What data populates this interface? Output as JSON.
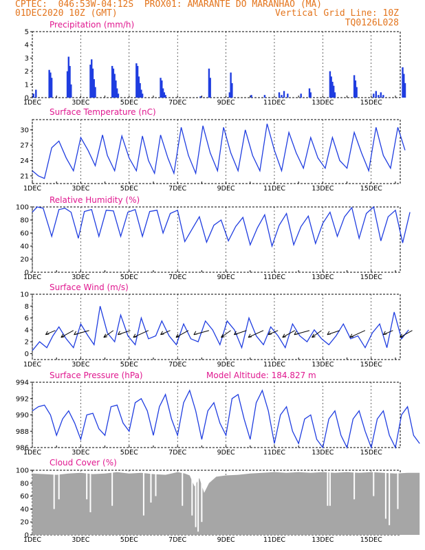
{
  "header": {
    "line1": "CPTEC:  046:53W-04:12S  PROX01: AMARANTE DO MARANHAO (MA)",
    "line2_left": "01DEC2020 10Z (GMT)",
    "line2_right": "Vertical Grid Line: 10Z",
    "line3_right": "TQ0126L028"
  },
  "colors": {
    "header": "#e3741c",
    "title": "#e0178f",
    "series": "#1f3de0",
    "cloud": "#a6a6a6",
    "wind_arrow": "#000000"
  },
  "x_ticks": [
    "1DEC",
    "3DEC",
    "5DEC",
    "7DEC",
    "9DEC",
    "11DEC",
    "13DEC",
    "15DEC"
  ],
  "panels": {
    "precip": {
      "title": "Precipitation (mm/h)"
    },
    "temp": {
      "title": "Surface Temperature (nC)"
    },
    "rh": {
      "title": "Relative Humidity (%)"
    },
    "wind": {
      "title": "Surface Wind (m/s)"
    },
    "pres": {
      "title": "Surface Pressure (hPa)",
      "extra": "Model Altitude: 184.827 m"
    },
    "cloud": {
      "title": "Cloud Cover (%)"
    }
  },
  "chart_data": [
    {
      "id": "precip",
      "type": "bar",
      "title": "Precipitation (mm/h)",
      "ylim": [
        0,
        5
      ],
      "yticks": [
        0,
        1,
        2,
        3,
        4,
        5
      ],
      "x_unit": "days since 1DEC2020 10Z",
      "x": [
        0.05,
        0.15,
        0.7,
        0.75,
        0.8,
        1.45,
        1.5,
        1.55,
        1.6,
        2.4,
        2.45,
        2.5,
        2.55,
        2.6,
        3.3,
        3.35,
        3.4,
        3.45,
        3.5,
        3.55,
        4.3,
        4.35,
        4.4,
        4.45,
        4.5,
        4.55,
        5.3,
        5.35,
        5.4,
        5.45,
        5.5,
        6.95,
        7.3,
        7.35,
        8.15,
        8.2,
        8.25,
        9.05,
        9.6,
        10.2,
        10.3,
        10.4,
        10.55,
        11.1,
        11.45,
        11.5,
        12.3,
        12.35,
        12.4,
        12.45,
        12.5,
        13.3,
        13.35,
        13.4,
        14.1,
        14.2,
        14.3,
        14.4,
        14.5,
        15.3,
        15.35,
        15.4
      ],
      "values": [
        0.3,
        0.6,
        2.1,
        1.9,
        1.5,
        2.0,
        3.1,
        2.4,
        1.0,
        2.5,
        2.9,
        2.2,
        1.4,
        0.8,
        2.4,
        2.2,
        1.8,
        1.3,
        0.7,
        0.3,
        2.6,
        2.4,
        1.6,
        1.1,
        0.6,
        0.3,
        1.5,
        1.3,
        0.7,
        0.4,
        0.2,
        0.1,
        2.2,
        1.5,
        0.4,
        1.9,
        1.1,
        0.2,
        0.2,
        0.4,
        0.2,
        0.5,
        0.3,
        0.3,
        0.7,
        0.4,
        2.0,
        1.6,
        1.2,
        0.9,
        0.4,
        1.7,
        1.3,
        0.8,
        0.3,
        0.5,
        0.2,
        0.4,
        0.2,
        2.3,
        1.8,
        1.1
      ]
    },
    {
      "id": "temp",
      "type": "line",
      "title": "Surface Temperature (nC)",
      "ylim": [
        19.5,
        32
      ],
      "yticks": [
        21,
        24,
        27,
        30
      ],
      "x_unit": "days since 1DEC2020 10Z",
      "series": [
        {
          "name": "",
          "x": [
            0,
            0.25,
            0.5,
            0.8,
            1.1,
            1.4,
            1.7,
            2.0,
            2.3,
            2.6,
            2.9,
            3.1,
            3.4,
            3.7,
            4.0,
            4.3,
            4.55,
            4.8,
            5.05,
            5.3,
            5.6,
            5.85,
            6.15,
            6.45,
            6.75,
            7.05,
            7.35,
            7.65,
            7.9,
            8.2,
            8.5,
            8.8,
            9.1,
            9.4,
            9.7,
            10.0,
            10.3,
            10.6,
            10.9,
            11.2,
            11.5,
            11.8,
            12.1,
            12.4,
            12.7,
            13.0,
            13.3,
            13.6,
            13.9,
            14.2,
            14.5,
            14.8,
            15.1,
            15.4
          ],
          "values": [
            22,
            21,
            20.5,
            26.5,
            27.8,
            24.5,
            22,
            28.5,
            26,
            23,
            29,
            25,
            22,
            28.8,
            24.5,
            22,
            28.8,
            24,
            21.5,
            29,
            24.5,
            21.5,
            30.5,
            25,
            21.5,
            30.8,
            25.5,
            22,
            30.5,
            25.5,
            22,
            30,
            25,
            22,
            31.2,
            26,
            22,
            29.5,
            25.5,
            22.5,
            28.5,
            24.5,
            22.5,
            28.5,
            24,
            22.5,
            29.5,
            25.5,
            22,
            30.5,
            25,
            22.5,
            30.5,
            26
          ]
        }
      ]
    },
    {
      "id": "rh",
      "type": "line",
      "title": "Relative Humidity (%)",
      "ylim": [
        0,
        100
      ],
      "yticks": [
        0,
        20,
        40,
        60,
        80,
        100
      ],
      "x_unit": "days since 1DEC2020 10Z",
      "series": [
        {
          "name": "",
          "x": [
            0,
            0.2,
            0.45,
            0.8,
            1.1,
            1.35,
            1.6,
            1.9,
            2.15,
            2.45,
            2.75,
            3.05,
            3.35,
            3.65,
            3.95,
            4.25,
            4.55,
            4.85,
            5.15,
            5.4,
            5.7,
            6.0,
            6.3,
            6.6,
            6.9,
            7.2,
            7.5,
            7.8,
            8.1,
            8.4,
            8.7,
            9.0,
            9.3,
            9.6,
            9.9,
            10.2,
            10.5,
            10.8,
            11.1,
            11.4,
            11.7,
            12.0,
            12.3,
            12.6,
            12.9,
            13.2,
            13.5,
            13.8,
            14.1,
            14.4,
            14.7,
            15.0,
            15.3,
            15.6
          ],
          "values": [
            92,
            100,
            98,
            55,
            96,
            98,
            92,
            52,
            93,
            96,
            55,
            95,
            94,
            55,
            92,
            96,
            55,
            93,
            95,
            60,
            90,
            95,
            47,
            66,
            85,
            46,
            72,
            80,
            48,
            70,
            84,
            42,
            68,
            88,
            40,
            72,
            90,
            42,
            70,
            86,
            44,
            75,
            92,
            55,
            85,
            99,
            52,
            90,
            100,
            48,
            85,
            95,
            45,
            92
          ]
        }
      ]
    },
    {
      "id": "wind",
      "type": "line",
      "title": "Surface Wind (m/s)",
      "ylim": [
        -1,
        10
      ],
      "yticks": [
        0,
        2,
        4,
        6,
        8,
        10
      ],
      "x_unit": "days since 1DEC2020 10Z",
      "series": [
        {
          "name": "",
          "x": [
            0,
            0.3,
            0.6,
            0.85,
            1.1,
            1.4,
            1.7,
            2.0,
            2.3,
            2.55,
            2.8,
            3.1,
            3.4,
            3.65,
            3.95,
            4.25,
            4.5,
            4.8,
            5.1,
            5.35,
            5.65,
            5.95,
            6.25,
            6.55,
            6.85,
            7.15,
            7.45,
            7.75,
            8.05,
            8.35,
            8.65,
            8.95,
            9.25,
            9.55,
            9.85,
            10.15,
            10.45,
            10.75,
            11.05,
            11.35,
            11.65,
            11.95,
            12.25,
            12.55,
            12.85,
            13.15,
            13.45,
            13.75,
            14.05,
            14.35,
            14.65,
            14.95,
            15.25,
            15.55
          ],
          "values": [
            0.5,
            2,
            1,
            3,
            4.5,
            2.5,
            1,
            5,
            3,
            1.5,
            8,
            3.5,
            2,
            6.5,
            3,
            1.5,
            6,
            2.5,
            3,
            5.5,
            3,
            1.5,
            5,
            2.5,
            2,
            5.5,
            4,
            1.5,
            5.5,
            4,
            1,
            6,
            3,
            1.5,
            4.5,
            3,
            1,
            5,
            3,
            2,
            4,
            2.5,
            1.5,
            3,
            5,
            2.5,
            3,
            1,
            3.5,
            5,
            1,
            7,
            2.5,
            4
          ]
        }
      ],
      "barbs_x": [
        0.55,
        1.3,
        1.95,
        2.95,
        3.65,
        4.4,
        5.3,
        6.05,
        6.9,
        7.8,
        8.45,
        9.15,
        9.75,
        10.45,
        11.05,
        11.55,
        12.3,
        13.35,
        14.5,
        15.3
      ]
    },
    {
      "id": "pres",
      "type": "line",
      "title": "Surface Pressure (hPa)",
      "ylim": [
        986,
        994
      ],
      "yticks": [
        986,
        988,
        990,
        992,
        994
      ],
      "x_unit": "days since 1DEC2020 10Z",
      "series": [
        {
          "name": "",
          "x": [
            0,
            0.25,
            0.5,
            0.75,
            1.0,
            1.25,
            1.5,
            1.75,
            2.0,
            2.25,
            2.5,
            2.75,
            3.0,
            3.25,
            3.5,
            3.75,
            4.0,
            4.25,
            4.5,
            4.75,
            5.0,
            5.25,
            5.5,
            5.75,
            6.0,
            6.25,
            6.5,
            6.75,
            7.0,
            7.25,
            7.5,
            7.75,
            8.0,
            8.25,
            8.5,
            8.75,
            9.0,
            9.25,
            9.5,
            9.75,
            10.0,
            10.25,
            10.5,
            10.75,
            11.0,
            11.25,
            11.5,
            11.75,
            12.0,
            12.25,
            12.5,
            12.75,
            13.0,
            13.25,
            13.5,
            13.75,
            14.0,
            14.25,
            14.5,
            14.75,
            15.0,
            15.25,
            15.5,
            15.75,
            16.0
          ],
          "values": [
            990.5,
            991,
            991.2,
            990,
            987.5,
            989.5,
            990.5,
            989,
            987,
            990,
            990.2,
            988.3,
            987.5,
            991,
            991.2,
            989,
            988,
            991.5,
            992,
            990.5,
            987.5,
            991,
            992.5,
            989.5,
            987.5,
            991.5,
            993,
            990.5,
            987,
            990.5,
            991.5,
            989,
            987.5,
            992,
            992.5,
            989.5,
            987,
            991.5,
            993,
            990.5,
            986.5,
            990,
            991,
            988,
            986.5,
            989.5,
            990,
            987,
            986,
            989.5,
            990.5,
            987.5,
            986,
            989.5,
            990.5,
            988,
            986,
            989.5,
            990.5,
            987.5,
            986,
            990,
            991,
            987.5,
            986.5
          ]
        }
      ]
    },
    {
      "id": "cloud",
      "type": "area",
      "title": "Cloud Cover (%)",
      "ylim": [
        0,
        100
      ],
      "yticks": [
        0,
        20,
        40,
        60,
        80,
        100
      ],
      "x_unit": "days since 1DEC2020 10Z",
      "series": [
        {
          "name": "",
          "x": [
            0,
            0.5,
            1,
            1.5,
            2,
            2.5,
            3,
            3.5,
            4,
            4.5,
            5,
            5.5,
            6,
            6.3,
            6.5,
            6.7,
            6.9,
            7.1,
            7.3,
            7.6,
            8,
            8.5,
            9,
            9.5,
            10,
            10.5,
            11,
            11.5,
            12,
            12.5,
            13,
            13.5,
            14,
            14.5,
            15,
            15.5,
            16
          ],
          "values": [
            95,
            94,
            93,
            95,
            96,
            94,
            95,
            97,
            95,
            96,
            94,
            93,
            97,
            95,
            92,
            75,
            88,
            65,
            80,
            90,
            92,
            93,
            95,
            96,
            97,
            96,
            97,
            96,
            97,
            96,
            97,
            96,
            97,
            96,
            95,
            96,
            96
          ]
        }
      ],
      "dips": [
        {
          "x": 0.9,
          "value": 40
        },
        {
          "x": 1.1,
          "value": 55
        },
        {
          "x": 2.25,
          "value": 55
        },
        {
          "x": 2.4,
          "value": 35
        },
        {
          "x": 3.3,
          "value": 45
        },
        {
          "x": 4.6,
          "value": 30
        },
        {
          "x": 4.9,
          "value": 50
        },
        {
          "x": 5.1,
          "value": 60
        },
        {
          "x": 6.2,
          "value": 45
        },
        {
          "x": 6.6,
          "value": 30
        },
        {
          "x": 6.75,
          "value": 12
        },
        {
          "x": 6.85,
          "value": 5
        },
        {
          "x": 7.0,
          "value": 20
        },
        {
          "x": 12.2,
          "value": 45
        },
        {
          "x": 12.3,
          "value": 45
        },
        {
          "x": 13.3,
          "value": 55
        },
        {
          "x": 14.1,
          "value": 60
        },
        {
          "x": 14.6,
          "value": 25
        },
        {
          "x": 14.75,
          "value": 15
        },
        {
          "x": 15.1,
          "value": 40
        }
      ]
    }
  ]
}
